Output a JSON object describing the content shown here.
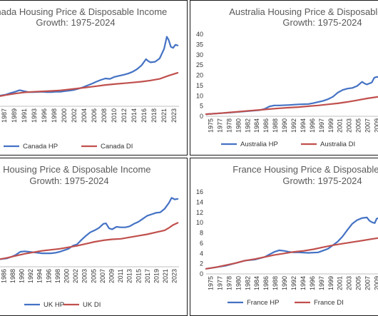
{
  "chart_data": [
    {
      "type": "line",
      "title_line1": "Canada Housing Price & Disposable Income",
      "title_line2": "Growth: 1975-2024",
      "x_tick_labels": [
        "1987",
        "1989",
        "1991",
        "1993",
        "1996",
        "1998",
        "2000",
        "2002",
        "2004",
        "2006",
        "2008",
        "2010",
        "2012",
        "2014",
        "2016",
        "2018",
        "2021",
        "2023"
      ],
      "y_tick_labels": [],
      "xlim": [
        1984.5,
        2024.3
      ],
      "ylim": [
        0,
        40
      ],
      "series": [
        {
          "name": "Canada HP",
          "color": "#4472c4",
          "x": [
            1984.5,
            1986,
            1987,
            1988,
            1989,
            1990,
            1991,
            1992,
            1993,
            1994,
            1995,
            1996,
            1997,
            1998,
            1999,
            2000,
            2001,
            2002,
            2003,
            2004,
            2005,
            2006,
            2007,
            2008,
            2009,
            2010,
            2011,
            2012,
            2013,
            2014,
            2015,
            2016,
            2017,
            2017.5,
            2018,
            2019,
            2020,
            2021,
            2021.6,
            2022,
            2022.5,
            2023,
            2023.5,
            2024
          ],
          "y": [
            5.2,
            5.8,
            6.6,
            7.2,
            8.0,
            7.5,
            7.0,
            7.0,
            7.1,
            7.2,
            7.0,
            7.0,
            7.2,
            7.2,
            7.5,
            7.8,
            8.1,
            8.7,
            9.4,
            10.3,
            11.2,
            12.2,
            13.1,
            13.8,
            13.6,
            14.6,
            15.1,
            15.6,
            16.2,
            17.1,
            18.4,
            20.3,
            23.4,
            22.4,
            21.8,
            22.1,
            23.7,
            28.5,
            34.5,
            33.0,
            29.5,
            29.0,
            30.5,
            30.2
          ]
        },
        {
          "name": "Canada DI",
          "color": "#c0504d",
          "x": [
            1984.5,
            1986,
            1988,
            1990,
            1992,
            1994,
            1996,
            1998,
            2000,
            2002,
            2004,
            2006,
            2008,
            2010,
            2012,
            2014,
            2016,
            2018,
            2020,
            2021,
            2022,
            2023,
            2024
          ],
          "y": [
            5.0,
            5.6,
            6.3,
            6.9,
            7.2,
            7.4,
            7.6,
            7.9,
            8.4,
            8.9,
            9.4,
            10.0,
            10.6,
            11.0,
            11.4,
            11.8,
            12.2,
            12.8,
            13.6,
            14.4,
            15.2,
            15.9,
            16.6
          ]
        }
      ]
    },
    {
      "type": "line",
      "title_line1": "Australia Housing Price & Disposable Income",
      "title_line2": "Growth: 1975-2024",
      "x_tick_labels": [
        "1975",
        "1977",
        "1978",
        "1980",
        "1982",
        "1984",
        "1986",
        "1988",
        "1990",
        "1992",
        "1994",
        "1996",
        "1997",
        "1999",
        "2001",
        "2003",
        "2005",
        "2007",
        "2009"
      ],
      "y_tick_labels": [
        "0",
        "5",
        "10",
        "15",
        "20",
        "25",
        "30",
        "35",
        "40"
      ],
      "xlim": [
        1975,
        2011
      ],
      "ylim": [
        0,
        40
      ],
      "series": [
        {
          "name": "Australia HP",
          "color": "#4472c4",
          "x": [
            1975,
            1978,
            1980,
            1982,
            1984,
            1986,
            1987,
            1988,
            1989,
            1990,
            1992,
            1994,
            1996,
            1997,
            1999,
            2000,
            2001,
            2002,
            2003,
            2004,
            2005,
            2006,
            2007,
            2007.5,
            2008,
            2009,
            2009.5,
            2010,
            2011
          ],
          "y": [
            1.0,
            1.5,
            1.8,
            2.2,
            2.6,
            3.0,
            3.6,
            4.8,
            5.3,
            5.3,
            5.5,
            5.8,
            6.0,
            6.4,
            7.5,
            8.3,
            9.5,
            11.5,
            12.8,
            13.5,
            13.8,
            14.8,
            16.8,
            16.0,
            15.5,
            16.5,
            18.8,
            19.2,
            19.0
          ]
        },
        {
          "name": "Australia DI",
          "color": "#c0504d",
          "x": [
            1975,
            1978,
            1980,
            1982,
            1984,
            1986,
            1988,
            1990,
            1992,
            1994,
            1996,
            1998,
            2000,
            2002,
            2004,
            2006,
            2008,
            2010,
            2011
          ],
          "y": [
            1.0,
            1.5,
            1.9,
            2.3,
            2.7,
            3.1,
            3.5,
            3.9,
            4.2,
            4.5,
            4.9,
            5.3,
            5.8,
            6.3,
            7.0,
            7.8,
            8.7,
            9.4,
            9.7
          ]
        }
      ]
    },
    {
      "type": "line",
      "title_line1": "UK Housing Price & Disposable Income",
      "title_line2": "Growth: 1975-2024",
      "x_tick_labels": [
        "1986",
        "1988",
        "1990",
        "1992",
        "1994",
        "1996",
        "1998",
        "2000",
        "2002",
        "2003",
        "2005",
        "2007",
        "2009",
        "2011",
        "2013",
        "2015",
        "2017",
        "2019",
        "2021",
        "2023"
      ],
      "y_tick_labels": [],
      "xlim": [
        1983.2,
        2024.3
      ],
      "ylim": [
        0,
        16
      ],
      "series": [
        {
          "name": "UK HP",
          "color": "#4472c4",
          "x": [
            1983.2,
            1985,
            1986,
            1987,
            1988,
            1989,
            1990,
            1991,
            1992,
            1993,
            1994,
            1995,
            1996,
            1997,
            1998,
            1999,
            2000,
            2001,
            2002,
            2003,
            2004,
            2005,
            2006,
            2007,
            2007.6,
            2008.3,
            2009,
            2010,
            2011,
            2012,
            2013,
            2014,
            2015,
            2016,
            2017,
            2018,
            2019,
            2020,
            2021,
            2022,
            2022.6,
            2023.3,
            2024
          ],
          "y": [
            1.5,
            1.7,
            2.0,
            2.4,
            3.0,
            3.1,
            3.0,
            2.9,
            2.8,
            2.7,
            2.7,
            2.7,
            2.8,
            3.0,
            3.3,
            3.6,
            4.2,
            4.5,
            5.4,
            6.2,
            6.9,
            7.3,
            7.8,
            8.6,
            8.7,
            7.7,
            7.5,
            8.0,
            7.9,
            7.9,
            8.1,
            8.6,
            9.0,
            9.6,
            10.2,
            10.5,
            10.8,
            10.9,
            11.6,
            12.8,
            13.8,
            13.5,
            13.6
          ]
        },
        {
          "name": "UK DI",
          "color": "#c0504d",
          "x": [
            1983.2,
            1985,
            1987,
            1989,
            1991,
            1993,
            1995,
            1997,
            1999,
            2001,
            2003,
            2005,
            2007,
            2009,
            2011,
            2013,
            2015,
            2017,
            2019,
            2021,
            2022,
            2023,
            2024
          ],
          "y": [
            1.5,
            1.8,
            2.2,
            2.6,
            2.9,
            3.2,
            3.4,
            3.6,
            3.9,
            4.2,
            4.6,
            5.0,
            5.3,
            5.5,
            5.6,
            5.9,
            6.2,
            6.5,
            6.9,
            7.3,
            7.8,
            8.4,
            8.8
          ]
        }
      ]
    },
    {
      "type": "line",
      "title_line1": "France Housing Price & Disposable Income",
      "title_line2": "Growth: 1975-2024",
      "x_tick_labels": [
        "1975",
        "1977",
        "1978",
        "1980",
        "1982",
        "1984",
        "1986",
        "1988",
        "1990",
        "1992",
        "1994",
        "1996",
        "1997",
        "1999",
        "2001",
        "2003",
        "2005",
        "2007",
        "2009"
      ],
      "y_tick_labels": [
        "0",
        "2",
        "4",
        "6",
        "8",
        "10",
        "12",
        "14",
        "16"
      ],
      "xlim": [
        1975,
        2011
      ],
      "ylim": [
        0,
        16
      ],
      "series": [
        {
          "name": "France HP",
          "color": "#4472c4",
          "x": [
            1975,
            1977,
            1979,
            1981,
            1983,
            1985,
            1987,
            1988,
            1989,
            1990,
            1991,
            1992,
            1993,
            1994,
            1996,
            1998,
            2000,
            2001,
            2002,
            2003,
            2004,
            2005,
            2006,
            2007,
            2008,
            2008.5,
            2009,
            2009.6,
            2010,
            2011
          ],
          "y": [
            1.0,
            1.3,
            1.6,
            2.1,
            2.6,
            2.8,
            3.3,
            3.8,
            4.3,
            4.6,
            4.5,
            4.3,
            4.2,
            4.2,
            4.1,
            4.2,
            4.9,
            5.6,
            6.3,
            7.3,
            8.6,
            9.8,
            10.5,
            10.9,
            11.0,
            10.4,
            10.1,
            9.9,
            10.8,
            11.0
          ]
        },
        {
          "name": "France DI",
          "color": "#c0504d",
          "x": [
            1975,
            1977,
            1979,
            1981,
            1983,
            1985,
            1987,
            1989,
            1991,
            1993,
            1995,
            1997,
            1999,
            2001,
            2003,
            2005,
            2007,
            2009,
            2011
          ],
          "y": [
            1.0,
            1.3,
            1.7,
            2.1,
            2.6,
            2.9,
            3.3,
            3.7,
            4.0,
            4.3,
            4.5,
            4.8,
            5.2,
            5.6,
            5.9,
            6.2,
            6.5,
            6.8,
            7.1
          ]
        }
      ]
    }
  ]
}
